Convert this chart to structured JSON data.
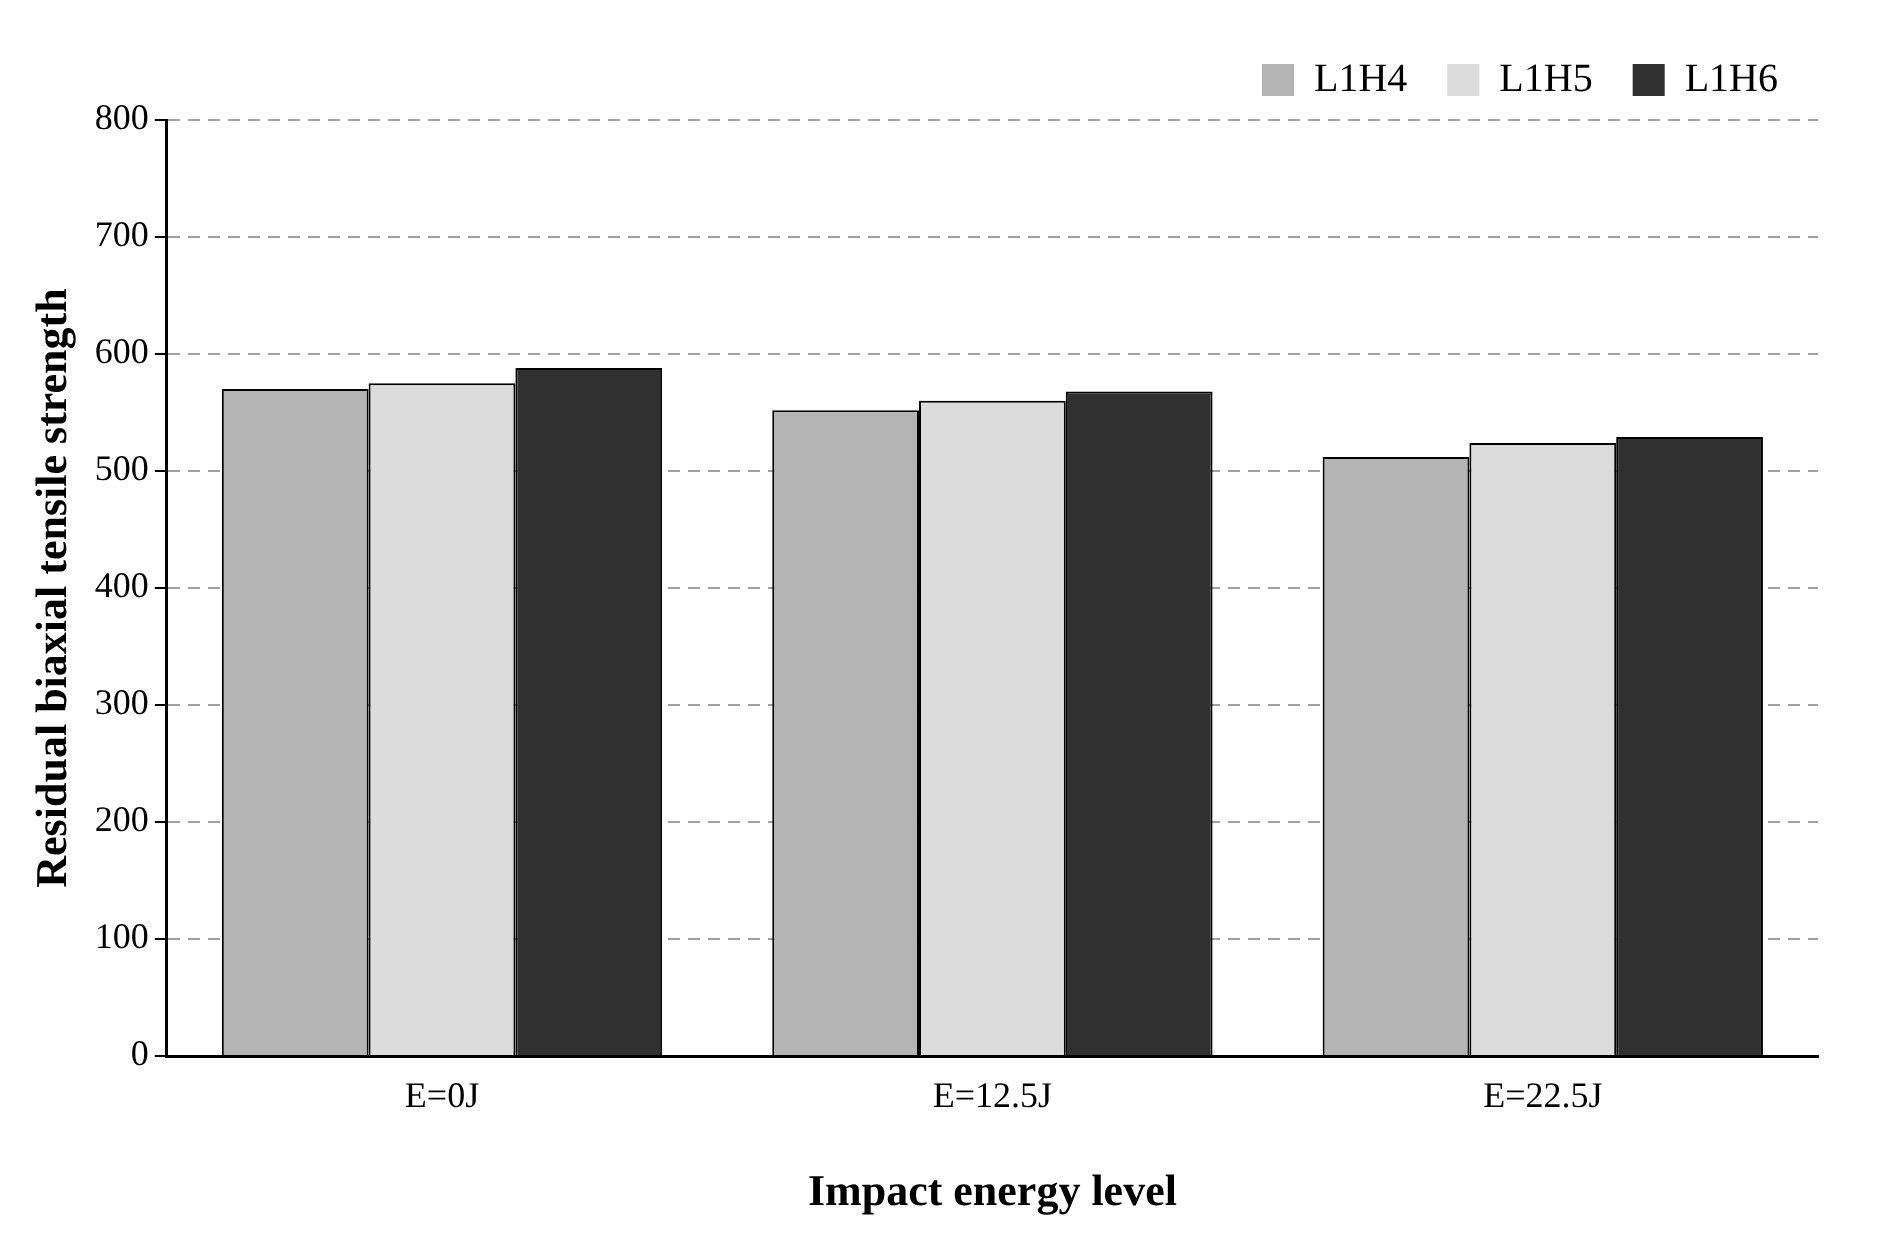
{
  "chart_data": {
    "type": "bar",
    "xlabel": "Impact energy level",
    "ylabel": "Residual biaxial tensile strength",
    "categories": [
      "E=0J",
      "E=12.5J",
      "E=22.5J"
    ],
    "series": [
      {
        "name": "L1H4",
        "color": "#b4b4b4",
        "values": [
          570,
          552,
          512
        ]
      },
      {
        "name": "L1H5",
        "color": "#dcdcdc",
        "values": [
          575,
          560,
          524
        ]
      },
      {
        "name": "L1H6",
        "color": "#303030",
        "values": [
          588,
          568,
          529
        ]
      }
    ],
    "ylim": [
      0,
      800
    ],
    "yticks": [
      0,
      100,
      200,
      300,
      400,
      500,
      600,
      700,
      800
    ],
    "grid": "y",
    "legend": "top right"
  }
}
